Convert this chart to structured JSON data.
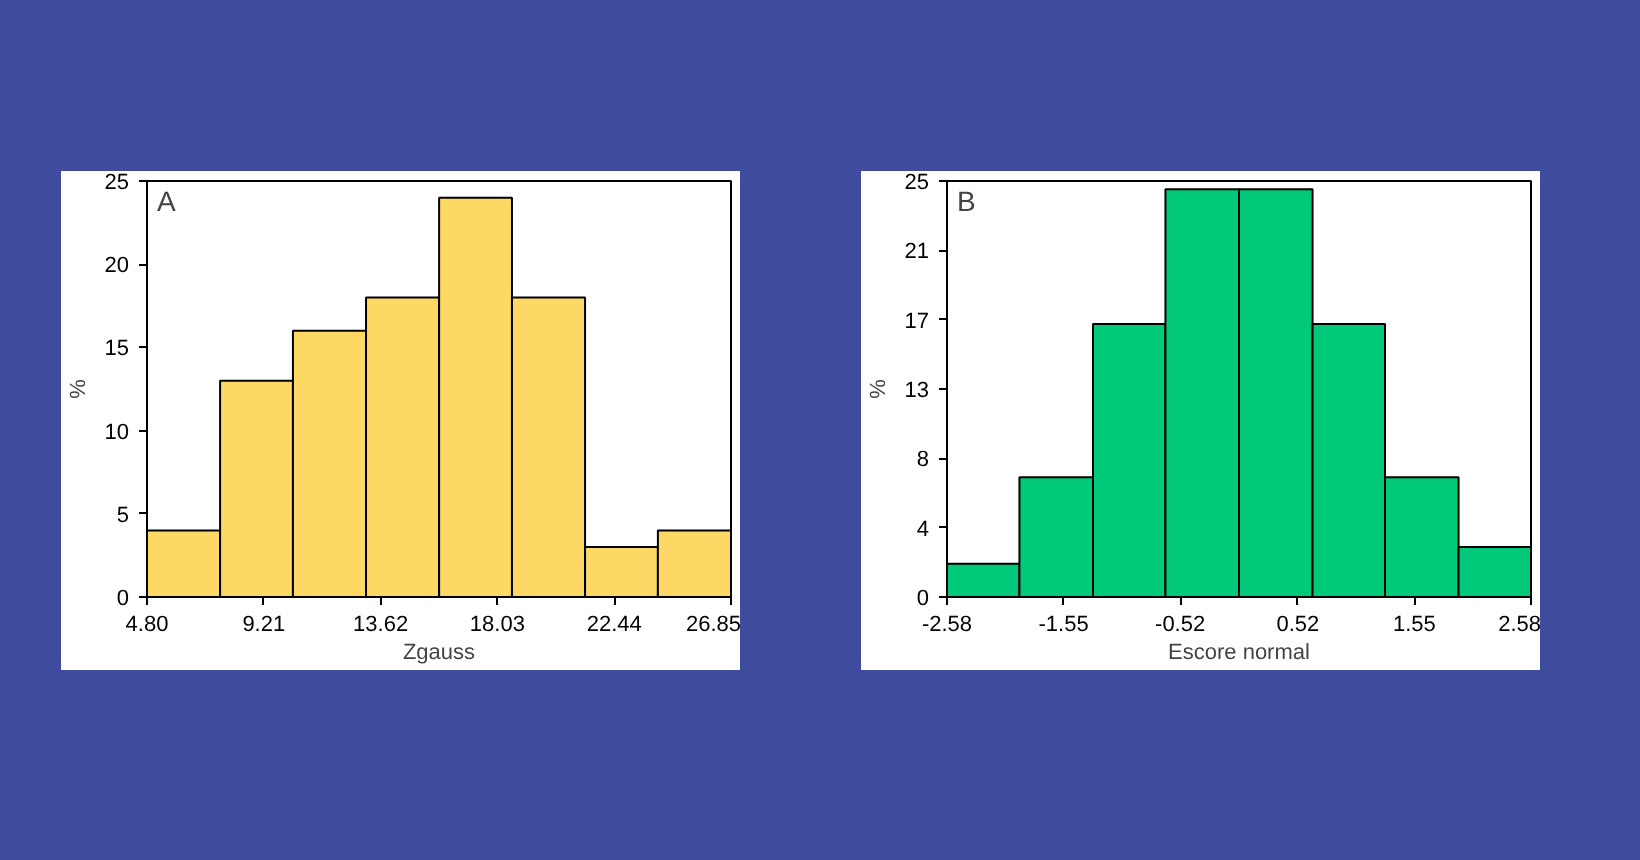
{
  "chart_data": [
    {
      "type": "histogram",
      "annotations": [
        "A"
      ],
      "xlabel": "Zgauss",
      "ylabel": "%",
      "color": "#fdd865",
      "bins": [
        4.8,
        7.56,
        10.31,
        13.07,
        15.83,
        18.58,
        21.34,
        24.09,
        26.85
      ],
      "values": [
        4,
        13,
        16,
        18,
        24,
        18,
        3,
        4
      ],
      "xlim": [
        4.8,
        26.85
      ],
      "xticks": [
        {
          "value": 4.8,
          "label": "4.80"
        },
        9.21,
        13.62,
        18.03,
        22.44,
        26.85
      ],
      "ylim": [
        0,
        25
      ],
      "yticks": [
        0,
        5,
        10,
        15,
        20,
        25
      ],
      "grid": false
    },
    {
      "type": "histogram",
      "annotations": [
        "B"
      ],
      "xlabel": "Escore normal",
      "ylabel": "%",
      "color": "#00c97a",
      "bins": [
        -2.58,
        -1.94,
        -1.29,
        -0.65,
        0,
        0.65,
        1.29,
        1.94,
        2.58
      ],
      "values": [
        2,
        7.2,
        16.4,
        24.5,
        24.5,
        16.4,
        7.2,
        3
      ],
      "xlim": [
        -2.58,
        2.58
      ],
      "xticks": [
        -2.58,
        -1.55,
        -0.52,
        0.52,
        1.55,
        2.58
      ],
      "ylim": [
        0,
        25
      ],
      "yticks": [
        0,
        {
          "value": 4.17,
          "label": "4"
        },
        {
          "value": 8.33,
          "label": "8"
        },
        {
          "value": 12.5,
          "label": "13"
        },
        {
          "value": 16.67,
          "label": "17"
        },
        {
          "value": 20.83,
          "label": "21"
        },
        25
      ],
      "grid": false
    }
  ]
}
